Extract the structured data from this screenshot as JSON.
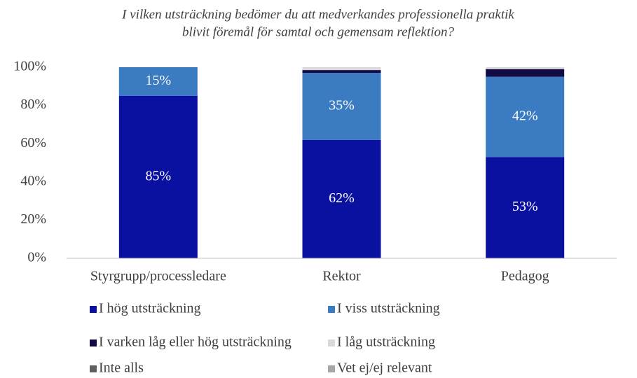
{
  "chart_data": {
    "type": "stacked_bar",
    "title": [
      "I vilken utsträckning bedömer du att medverkandes professionella praktik",
      "blivit föremål för samtal och gemensam reflektion?"
    ],
    "categories": [
      "Styrgrupp/processledare",
      "Rektor",
      "Pedagog"
    ],
    "series": [
      {
        "name": "I hög utsträckning",
        "color": "#0a10a0",
        "values": [
          85,
          62,
          53
        ],
        "value_labels": [
          "85%",
          "62%",
          "53%"
        ]
      },
      {
        "name": "I viss utsträckning",
        "color": "#3a7bc2",
        "values": [
          15,
          35,
          42
        ],
        "value_labels": [
          "15%",
          "35%",
          "42%"
        ]
      },
      {
        "name": "I varken låg eller hög utsträckning",
        "color": "#120a45",
        "values": [
          0,
          1.5,
          4
        ]
      },
      {
        "name": "I låg utsträckning",
        "color": "#d9d9d9",
        "values": [
          0,
          1.5,
          1
        ]
      },
      {
        "name": "Inte alls",
        "color": "#5f5f5f",
        "values": [
          0,
          0,
          0
        ]
      },
      {
        "name": "Vet ej/ej relevant",
        "color": "#a6a6a6",
        "values": [
          0,
          0,
          0
        ]
      }
    ],
    "ylim": [
      0,
      100
    ],
    "yticks": [
      {
        "value": 0,
        "label": "0%"
      },
      {
        "value": 20,
        "label": "20%"
      },
      {
        "value": 40,
        "label": "40%"
      },
      {
        "value": 60,
        "label": "60%"
      },
      {
        "value": 80,
        "label": "80%"
      },
      {
        "value": 100,
        "label": "100%"
      }
    ]
  }
}
